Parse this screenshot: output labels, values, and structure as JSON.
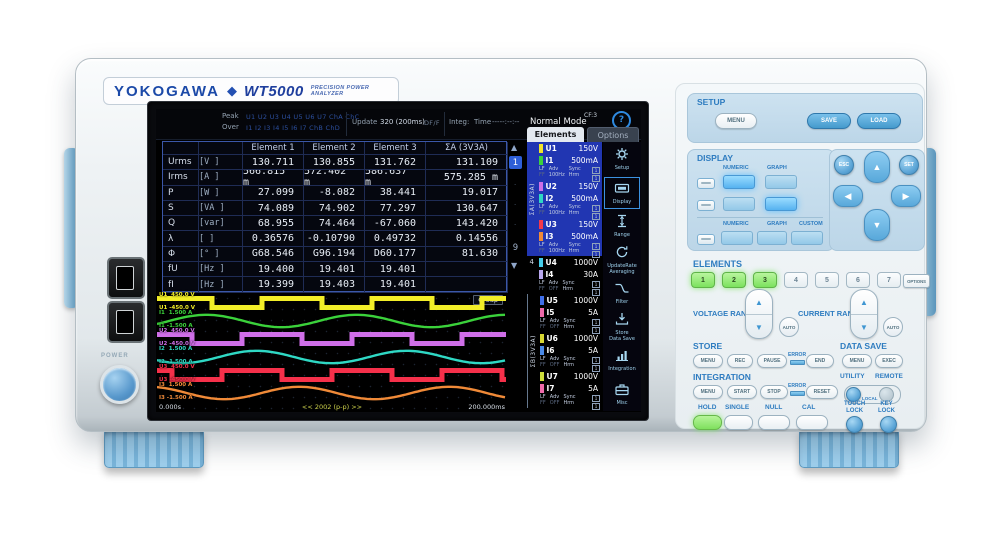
{
  "branding": {
    "maker": "YOKOGAWA",
    "diamond": "◆",
    "model": "WT5000",
    "tagline": "PRECISION POWER ANALYZER"
  },
  "screen": {
    "status": {
      "peak_label": "Peak",
      "over_label": "Over",
      "peak_channels": "U1 U2 U3 U4 U5 U6 U7 ChA ChC",
      "over_channels": "I1 I2 I3 I4 I5 I6 I7 ChB ChD",
      "update_label": "Update",
      "update_value": "320 (200ms)",
      "update_mode": "DF/F",
      "integ_label": "Integ:",
      "time_label": "Time",
      "time_value": "-----:--:--"
    },
    "mode": "Normal Mode",
    "cf_badge": "CF:3",
    "help": "?",
    "tabs": {
      "elements": "Elements",
      "options": "Options"
    },
    "table": {
      "headers": [
        "Element 1",
        "Element 2",
        "Element 3",
        "ΣA (3V3A)"
      ],
      "rows": [
        {
          "name": "Urms",
          "unit": "[V  ]",
          "values": [
            "130.711",
            "130.855",
            "131.762",
            "131.109"
          ]
        },
        {
          "name": "Irms",
          "unit": "[A  ]",
          "values": [
            "566.815 m",
            "572.402 m",
            "586.637 m",
            "575.285 m"
          ]
        },
        {
          "name": "P",
          "unit": "[W  ]",
          "values": [
            "27.099",
            "-8.082",
            "38.441",
            "19.017"
          ]
        },
        {
          "name": "S",
          "unit": "[VA ]",
          "values": [
            "74.089",
            "74.902",
            "77.297",
            "130.647"
          ]
        },
        {
          "name": "Q",
          "unit": "[var]",
          "values": [
            "68.955",
            "74.464",
            "-67.060",
            "143.420"
          ]
        },
        {
          "name": "λ",
          "unit": "[   ]",
          "values": [
            "0.36576",
            "-0.10790",
            "0.49732",
            "0.14556"
          ]
        },
        {
          "name": "Φ",
          "unit": "[°  ]",
          "values": [
            "G68.546",
            "G96.194",
            "D60.177",
            "81.630"
          ]
        },
        {
          "name": "fU",
          "unit": "[Hz ]",
          "values": [
            "19.400",
            "19.401",
            "19.401",
            ""
          ]
        },
        {
          "name": "fI",
          "unit": "[Hz ]",
          "values": [
            "19.399",
            "19.403",
            "19.401",
            ""
          ]
        }
      ]
    },
    "pager": {
      "items": [
        "▲",
        "1",
        "·",
        "·",
        "·",
        "9",
        "▼"
      ],
      "selected_index": 1
    },
    "waveform": {
      "group_label": "Group",
      "t_start": "0.000s",
      "t_center": "<< 2002 (p-p) >>",
      "t_end": "200.000ms",
      "traces": [
        {
          "id": "U1",
          "color": "#f2ee28",
          "type": "square",
          "first_edge": 55,
          "label_top": "U1  450.0 V",
          "label_bottom": "U1 -450.0 V"
        },
        {
          "id": "I1",
          "color": "#3bd23b",
          "type": "sine",
          "phase": -0.5,
          "period": 150,
          "label_top": "I1  1.500 A",
          "label_bottom": "I1 -1.500 A"
        },
        {
          "id": "U2",
          "color": "#cf6fe8",
          "type": "square",
          "first_edge": 35,
          "label_top": "U2  450.0 V",
          "label_bottom": "U2 -450.0 V"
        },
        {
          "id": "I2",
          "color": "#2fd8c4",
          "type": "sine",
          "phase": -2.6,
          "period": 150,
          "label_top": "I2  1.500 A",
          "label_bottom": "I2 -1.500 A"
        },
        {
          "id": "U3",
          "color": "#f5304a",
          "type": "square",
          "first_edge": 15,
          "label_top": "U3  450.0 V",
          "label_bottom": "U3 -450.0 V"
        },
        {
          "id": "I3",
          "color": "#f08a38",
          "type": "sine",
          "phase": 1.9,
          "period": 150,
          "label_top": "I3  1.500 A",
          "label_bottom": "I3 -1.500 A"
        }
      ]
    },
    "element_panel": {
      "groups": [
        {
          "label": "ΣA(3V3A)",
          "highlight": true,
          "elements": [
            {
              "u_name": "U1",
              "u_range": "150V",
              "u_color": "#f2e42a",
              "i_name": "I1",
              "i_range": "500mA",
              "i_color": "#3bd23b",
              "lf": "LF",
              "ff": "FF",
              "adv": "Adv",
              "freq": "100Hz",
              "sync": "Sync",
              "hrm": "Hrm",
              "tag_u": "1",
              "tag_i": "1"
            },
            {
              "u_name": "U2",
              "u_range": "150V",
              "u_color": "#cf6fe8",
              "i_name": "I2",
              "i_range": "500mA",
              "i_color": "#2fd8c4",
              "lf": "LF",
              "ff": "FF",
              "adv": "Adv",
              "freq": "100Hz",
              "sync": "Sync",
              "hrm": "Hrm",
              "tag_u": "1",
              "tag_i": "1"
            },
            {
              "u_name": "U3",
              "u_range": "150V",
              "u_color": "#f5384a",
              "i_name": "I3",
              "i_range": "500mA",
              "i_color": "#f08a38",
              "lf": "LF",
              "ff": "FF",
              "adv": "Adv",
              "freq": "100Hz",
              "sync": "Sync",
              "hrm": "Hrm",
              "tag_u": "1",
              "tag_i": "1"
            }
          ]
        },
        {
          "label": "4",
          "highlight": false,
          "elements": [
            {
              "u_name": "U4",
              "u_range": "1000V",
              "u_color": "#45cce8",
              "i_name": "I4",
              "i_range": "30A",
              "i_color": "#b9a8ee",
              "lf": "LF",
              "ff": "FF",
              "adv": "Adv",
              "freq": "OFF",
              "sync": "Sync",
              "hrm": "Hrm",
              "tag_u": "1",
              "tag_i": "1"
            }
          ]
        },
        {
          "label": "ΣB(3V3A)",
          "highlight": false,
          "elements": [
            {
              "u_name": "U5",
              "u_range": "1000V",
              "u_color": "#3f6ee8",
              "i_name": "I5",
              "i_range": "5A",
              "i_color": "#ee6aaa",
              "lf": "LF",
              "ff": "FF",
              "adv": "Adv",
              "freq": "OFF",
              "sync": "Sync",
              "hrm": "Hrm",
              "tag_u": "1",
              "tag_i": "1"
            },
            {
              "u_name": "U6",
              "u_range": "1000V",
              "u_color": "#d8d832",
              "i_name": "I6",
              "i_range": "5A",
              "i_color": "#4a8ae8",
              "lf": "LF",
              "ff": "FF",
              "adv": "Adv",
              "freq": "OFF",
              "sync": "Sync",
              "hrm": "Hrm",
              "tag_u": "1",
              "tag_i": "1"
            },
            {
              "u_name": "U7",
              "u_range": "1000V",
              "u_color": "#cede3a",
              "i_name": "I7",
              "i_range": "5A",
              "i_color": "#ee6aaa",
              "lf": "LF",
              "ff": "FF",
              "adv": "Adv",
              "freq": "OFF",
              "sync": "Sync",
              "hrm": "Hrm",
              "tag_u": "1",
              "tag_i": "1"
            }
          ]
        }
      ]
    },
    "sidebar": [
      {
        "name": "setup-icon",
        "label": [
          "Setup"
        ],
        "selected": false
      },
      {
        "name": "display-icon",
        "label": [
          "Display"
        ],
        "selected": true
      },
      {
        "name": "range-icon",
        "label": [
          "Range"
        ],
        "selected": false
      },
      {
        "name": "update-rate-icon",
        "label": [
          "UpdateRate",
          "Averaging"
        ],
        "selected": false
      },
      {
        "name": "filter-icon",
        "label": [
          "Filter"
        ],
        "selected": false
      },
      {
        "name": "store-icon",
        "label": [
          "Store",
          "Data Save"
        ],
        "selected": false
      },
      {
        "name": "integration-icon",
        "label": [
          "Integration"
        ],
        "selected": false
      },
      {
        "name": "misc-icon",
        "label": [
          "Misc"
        ],
        "selected": false
      }
    ]
  },
  "panel": {
    "setup": {
      "label": "SETUP",
      "menu": "MENU",
      "save": "SAVE",
      "load": "LOAD"
    },
    "display": {
      "label": "DISPLAY",
      "numeric": "NUMERIC",
      "graph": "GRAPH",
      "custom": "CUSTOM"
    },
    "nav": {
      "esc": "ESC",
      "set": "SET",
      "up": "▲",
      "down": "▼",
      "left": "◀",
      "right": "▶"
    },
    "elements": {
      "label": "ELEMENTS",
      "keys": [
        "1",
        "2",
        "3",
        "4",
        "5",
        "6",
        "7"
      ],
      "active_keys": [
        0,
        1,
        2
      ],
      "options": "OPTIONS"
    },
    "voltage": {
      "label": "VOLTAGE RANGE",
      "auto": "AUTO"
    },
    "current": {
      "label": "CURRENT RANGE",
      "auto": "AUTO"
    },
    "store": {
      "label": "STORE",
      "menu": "MENU",
      "rec": "REC",
      "pause": "PAUSE",
      "error": "ERROR",
      "end": "END"
    },
    "data_save": {
      "label": "DATA SAVE",
      "menu": "MENU",
      "exec": "EXEC"
    },
    "integration": {
      "label": "INTEGRATION",
      "menu": "MENU",
      "start": "START",
      "stop": "STOP",
      "error": "ERROR",
      "reset": "RESET"
    },
    "utility": {
      "label": "UTILITY",
      "remote": "REMOTE",
      "local": "LOCAL"
    },
    "hold": "HOLD",
    "single": "SINGLE",
    "null": "NULL",
    "cal": "CAL",
    "touch_lock": [
      "TOUCH",
      "LOCK"
    ],
    "key_lock": [
      "KEY",
      "LOCK"
    ],
    "power": "POWER"
  }
}
